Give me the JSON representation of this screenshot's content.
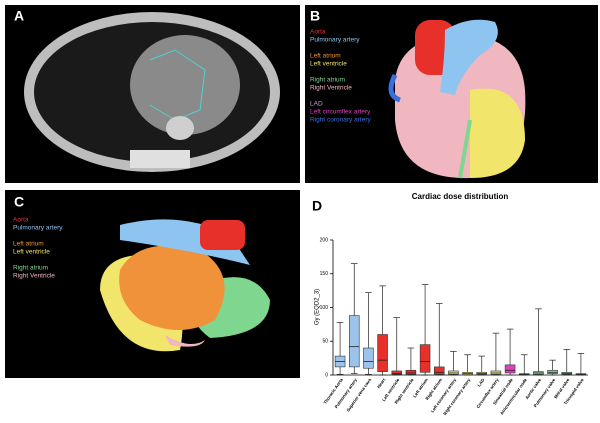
{
  "panels": {
    "A": {
      "label": "A"
    },
    "B": {
      "label": "B",
      "legend": [
        {
          "text": "Aorta",
          "color": "#e8302a"
        },
        {
          "text": "Pulmonary artery",
          "color": "#8ec4f0"
        },
        {
          "text": "Left atrium",
          "color": "#f0923a"
        },
        {
          "text": "Left ventricle",
          "color": "#f2e56b"
        },
        {
          "text": "Right atrium",
          "color": "#7fd68f"
        },
        {
          "text": "Right Ventricle",
          "color": "#f0b7c0"
        },
        {
          "text": "LAD",
          "color": "#c9a0d8"
        },
        {
          "text": "Left circumflex artery",
          "color": "#e040c0"
        },
        {
          "text": "Right coronary artery",
          "color": "#3a6fe0"
        }
      ]
    },
    "C": {
      "label": "C",
      "legend": [
        {
          "text": "Aorta",
          "color": "#e8302a"
        },
        {
          "text": "Pulmonary artery",
          "color": "#8ec4f0"
        },
        {
          "text": "Left atrium",
          "color": "#f0923a"
        },
        {
          "text": "Left ventricle",
          "color": "#f2e56b"
        },
        {
          "text": "Right atrium",
          "color": "#7fd68f"
        },
        {
          "text": "Right Ventricle",
          "color": "#f0b7c0"
        }
      ]
    },
    "D": {
      "label": "D"
    }
  },
  "chart_data": {
    "type": "box",
    "title": "Cardiac dose distribution",
    "y_label": "Gy (EQD2_3)",
    "categories": [
      "Thoracic Aorta",
      "Pulmonary artery",
      "Superior vena cava",
      "Heart",
      "Left ventricle",
      "Right ventricle",
      "Left atrium",
      "Right atrium",
      "Left coronary artery",
      "Right coronary artery",
      "LAD",
      "Circumflex artery",
      "Sinoatrial node",
      "Atrioventricular node",
      "Aortic valve",
      "Pulmonary valve",
      "Mitral valve",
      "Tricuspid valve"
    ],
    "colors": [
      "#9cc3ea",
      "#9cc3ea",
      "#9cc3ea",
      "#e8302a",
      "#e8302a",
      "#e8302a",
      "#e8302a",
      "#e8302a",
      "#f2e56b",
      "#f2e56b",
      "#f2e56b",
      "#f2e56b",
      "#e040c0",
      "#e040c0",
      "#8fd19e",
      "#8fd19e",
      "#8fd19e",
      "#8fd19e"
    ],
    "min": [
      1,
      2,
      1,
      0,
      0,
      0,
      0,
      0,
      0,
      0,
      0,
      0,
      0,
      0,
      0,
      0,
      0,
      0
    ],
    "q1": [
      12,
      12,
      10,
      5,
      1,
      1,
      4,
      1,
      1,
      0.5,
      1,
      1,
      3,
      0.5,
      1,
      2,
      1,
      0.5
    ],
    "median": [
      20,
      42,
      20,
      22,
      2,
      3,
      20,
      4,
      3,
      2,
      2,
      3,
      7,
      1,
      3,
      4,
      2,
      1
    ],
    "q3": [
      28,
      88,
      40,
      60,
      6,
      7,
      45,
      12,
      6,
      4,
      4,
      6,
      15,
      2,
      5,
      7,
      4,
      2
    ],
    "max": [
      78,
      165,
      122,
      132,
      85,
      40,
      134,
      106,
      35,
      30,
      28,
      62,
      68,
      30,
      98,
      22,
      38,
      32
    ],
    "ylim": [
      0,
      200
    ],
    "yticks": [
      0,
      50,
      100,
      150,
      200
    ]
  }
}
